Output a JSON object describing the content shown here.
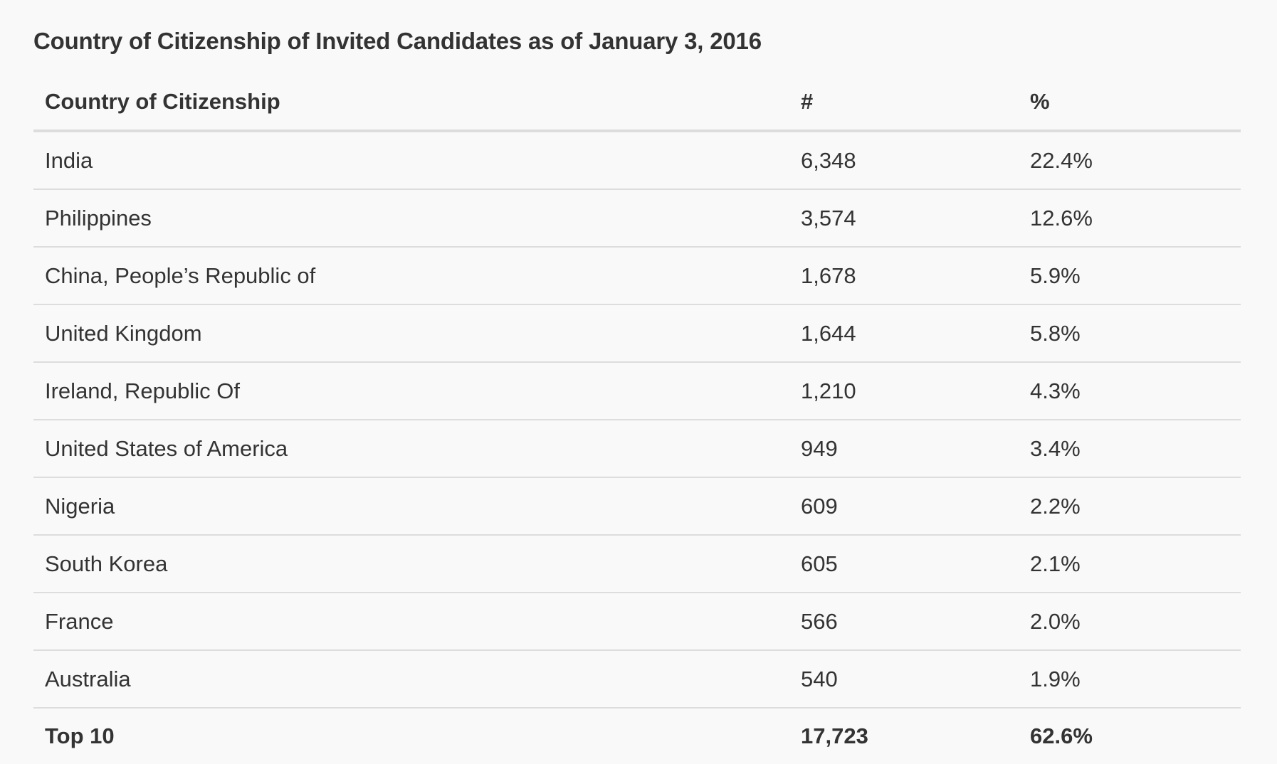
{
  "title": "Country of Citizenship of Invited Candidates as of January 3, 2016",
  "table": {
    "headers": [
      "Country of Citizenship",
      "#",
      "%"
    ],
    "rows": [
      [
        "India",
        "6,348",
        "22.4%"
      ],
      [
        "Philippines",
        "3,574",
        "12.6%"
      ],
      [
        "China, People’s Republic of",
        "1,678",
        "5.9%"
      ],
      [
        "United Kingdom",
        "1,644",
        "5.8%"
      ],
      [
        "Ireland, Republic Of",
        "1,210",
        "4.3%"
      ],
      [
        "United States of America",
        "949",
        "3.4%"
      ],
      [
        "Nigeria",
        "609",
        "2.2%"
      ],
      [
        "South Korea",
        "605",
        "2.1%"
      ],
      [
        "France",
        "566",
        "2.0%"
      ],
      [
        "Australia",
        "540",
        "1.9%"
      ]
    ],
    "footer": [
      "Top 10",
      "17,723",
      "62.6%"
    ]
  }
}
